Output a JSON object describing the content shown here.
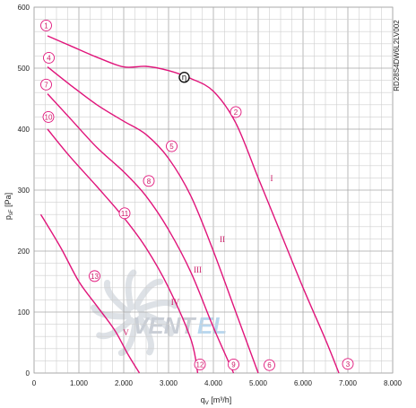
{
  "chart_data": {
    "type": "line",
    "xlabel": "q",
    "xlabel_sub": "V",
    "xlabel_unit": " [m³/h]",
    "ylabel": "p",
    "ylabel_sub": "sF",
    "ylabel_unit": " [Pa]",
    "side_label": "RD28S4DW6L2LV002",
    "watermark": {
      "text_a": "VENT",
      "text_b": "EL",
      "color_a": "#c9ced6",
      "color_b": "#b9d7ee"
    },
    "xlim": [
      0,
      8000
    ],
    "ylim": [
      0,
      600
    ],
    "x_ticks": [
      0,
      1000,
      2000,
      3000,
      4000,
      5000,
      6000,
      7000,
      8000
    ],
    "x_tick_labels": [
      "0",
      "1.000",
      "2.000",
      "3.000",
      "4.000",
      "5.000",
      "6.000",
      "7.000",
      "8.000"
    ],
    "y_ticks": [
      0,
      100,
      200,
      300,
      400,
      500,
      600
    ],
    "y_tick_labels": [
      "0",
      "100",
      "200",
      "300",
      "400",
      "500",
      "600"
    ],
    "grid": true,
    "curve_color": "#e0147a",
    "series": [
      {
        "name": "I",
        "label_at": [
          5300,
          315
        ],
        "points": [
          [
            300,
            553
          ],
          [
            800,
            537
          ],
          [
            1400,
            518
          ],
          [
            2000,
            502
          ],
          [
            2500,
            503
          ],
          [
            3000,
            496
          ],
          [
            3500,
            483
          ],
          [
            4000,
            462
          ],
          [
            4500,
            410
          ],
          [
            5000,
            320
          ],
          [
            5500,
            230
          ],
          [
            6000,
            140
          ],
          [
            6500,
            55
          ],
          [
            6800,
            0
          ]
        ]
      },
      {
        "name": "II",
        "label_at": [
          4200,
          215
        ],
        "points": [
          [
            300,
            502
          ],
          [
            800,
            473
          ],
          [
            1400,
            440
          ],
          [
            2000,
            413
          ],
          [
            2500,
            391
          ],
          [
            3000,
            352
          ],
          [
            3500,
            290
          ],
          [
            4000,
            200
          ],
          [
            4500,
            100
          ],
          [
            5000,
            0
          ]
        ]
      },
      {
        "name": "III",
        "label_at": [
          3650,
          165
        ],
        "points": [
          [
            300,
            458
          ],
          [
            800,
            418
          ],
          [
            1400,
            370
          ],
          [
            2000,
            330
          ],
          [
            2500,
            290
          ],
          [
            3000,
            235
          ],
          [
            3500,
            165
          ],
          [
            4000,
            75
          ],
          [
            4450,
            0
          ]
        ]
      },
      {
        "name": "IV",
        "label_at": [
          3150,
          112
        ],
        "points": [
          [
            300,
            400
          ],
          [
            800,
            355
          ],
          [
            1400,
            306
          ],
          [
            2000,
            255
          ],
          [
            2500,
            205
          ],
          [
            3000,
            140
          ],
          [
            3500,
            55
          ],
          [
            3650,
            0
          ]
        ]
      },
      {
        "name": "V",
        "label_at": [
          2050,
          62
        ],
        "points": [
          [
            150,
            260
          ],
          [
            600,
            205
          ],
          [
            1000,
            150
          ],
          [
            1400,
            110
          ],
          [
            1800,
            70
          ],
          [
            2100,
            30
          ],
          [
            2350,
            0
          ]
        ]
      }
    ],
    "point_markers": [
      {
        "label": "1",
        "x": 270,
        "y": 570
      },
      {
        "label": "4",
        "x": 330,
        "y": 517
      },
      {
        "label": "7",
        "x": 270,
        "y": 473
      },
      {
        "label": "10",
        "x": 320,
        "y": 420
      },
      {
        "label": "2",
        "x": 4500,
        "y": 428
      },
      {
        "label": "5",
        "x": 3070,
        "y": 372
      },
      {
        "label": "8",
        "x": 2560,
        "y": 315
      },
      {
        "label": "11",
        "x": 2020,
        "y": 262
      },
      {
        "label": "13",
        "x": 1350,
        "y": 159
      },
      {
        "label": "3",
        "x": 7000,
        "y": 15
      },
      {
        "label": "6",
        "x": 5250,
        "y": 13
      },
      {
        "label": "9",
        "x": 4450,
        "y": 14
      },
      {
        "label": "12",
        "x": 3700,
        "y": 14
      }
    ],
    "efficiency_marker": {
      "label": "η",
      "x": 3350,
      "y": 485
    }
  }
}
